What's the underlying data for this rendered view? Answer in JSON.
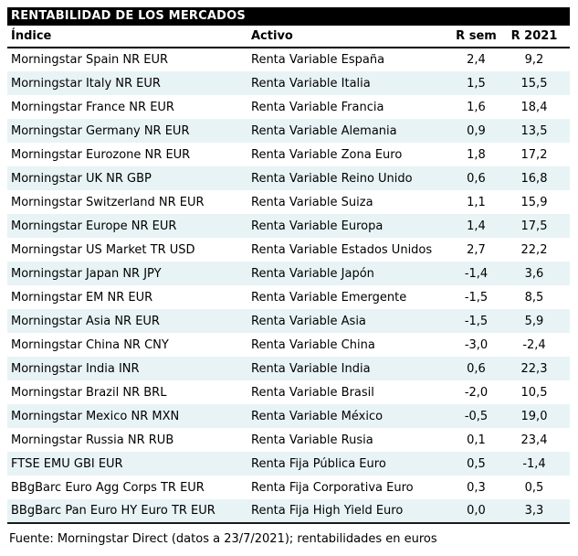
{
  "title": "RENTABILIDAD DE LOS MERCADOS",
  "columns": {
    "indice": "Índice",
    "activo": "Activo",
    "r_sem": "R sem",
    "r_2021": "R 2021"
  },
  "rows": [
    {
      "indice": "Morningstar Spain NR EUR",
      "activo": "Renta Variable España",
      "r_sem": "2,4",
      "r_2021": "9,2"
    },
    {
      "indice": "Morningstar Italy NR EUR",
      "activo": "Renta Variable Italia",
      "r_sem": "1,5",
      "r_2021": "15,5"
    },
    {
      "indice": "Morningstar France NR EUR",
      "activo": "Renta Variable Francia",
      "r_sem": "1,6",
      "r_2021": "18,4"
    },
    {
      "indice": "Morningstar Germany NR EUR",
      "activo": "Renta Variable Alemania",
      "r_sem": "0,9",
      "r_2021": "13,5"
    },
    {
      "indice": "Morningstar Eurozone NR EUR",
      "activo": "Renta Variable Zona Euro",
      "r_sem": "1,8",
      "r_2021": "17,2"
    },
    {
      "indice": "Morningstar UK NR GBP",
      "activo": "Renta Variable Reino Unido",
      "r_sem": "0,6",
      "r_2021": "16,8"
    },
    {
      "indice": "Morningstar Switzerland NR EUR",
      "activo": "Renta Variable Suiza",
      "r_sem": "1,1",
      "r_2021": "15,9"
    },
    {
      "indice": "Morningstar Europe NR EUR",
      "activo": "Renta Variable Europa",
      "r_sem": "1,4",
      "r_2021": "17,5"
    },
    {
      "indice": "Morningstar US Market TR USD",
      "activo": "Renta Variable Estados Unidos",
      "r_sem": "2,7",
      "r_2021": "22,2"
    },
    {
      "indice": "Morningstar Japan NR JPY",
      "activo": "Renta Variable Japón",
      "r_sem": "-1,4",
      "r_2021": "3,6"
    },
    {
      "indice": "Morningstar EM NR EUR",
      "activo": "Renta Variable Emergente",
      "r_sem": "-1,5",
      "r_2021": "8,5"
    },
    {
      "indice": "Morningstar Asia NR EUR",
      "activo": "Renta Variable Asia",
      "r_sem": "-1,5",
      "r_2021": "5,9"
    },
    {
      "indice": "Morningstar China NR CNY",
      "activo": "Renta Variable China",
      "r_sem": "-3,0",
      "r_2021": "-2,4"
    },
    {
      "indice": "Morningstar India INR",
      "activo": "Renta Variable India",
      "r_sem": "0,6",
      "r_2021": "22,3"
    },
    {
      "indice": "Morningstar Brazil NR BRL",
      "activo": "Renta Variable Brasil",
      "r_sem": "-2,0",
      "r_2021": "10,5"
    },
    {
      "indice": "Morningstar Mexico NR MXN",
      "activo": "Renta Variable México",
      "r_sem": "-0,5",
      "r_2021": "19,0"
    },
    {
      "indice": "Morningstar Russia NR RUB",
      "activo": "Renta Variable Rusia",
      "r_sem": "0,1",
      "r_2021": "23,4"
    },
    {
      "indice": "FTSE EMU GBI EUR",
      "activo": "Renta Fija Pública Euro",
      "r_sem": "0,5",
      "r_2021": "-1,4"
    },
    {
      "indice": "BBgBarc Euro Agg Corps TR EUR",
      "activo": "Renta Fija Corporativa Euro",
      "r_sem": "0,3",
      "r_2021": "0,5"
    },
    {
      "indice": "BBgBarc Pan Euro HY Euro TR EUR",
      "activo": "Renta Fija High Yield Euro",
      "r_sem": "0,0",
      "r_2021": "3,3"
    }
  ],
  "footer": "Fuente: Morningstar Direct (datos a 23/7/2021); rentabilidades en euros",
  "colors": {
    "title_bg": "#000000",
    "title_text": "#ffffff",
    "row_alt_bg": "#e8f3f6",
    "border": "#000000",
    "text": "#000000"
  }
}
